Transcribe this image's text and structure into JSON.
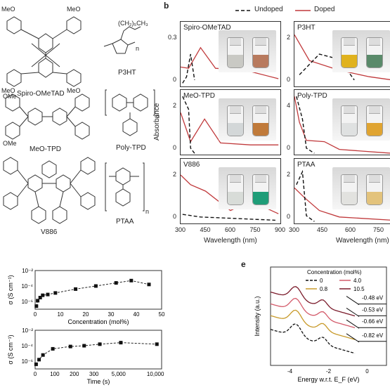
{
  "panel_b_label": "b",
  "panel_e_label": "e",
  "legend_b": {
    "undoped": "Undoped",
    "doped": "Doped"
  },
  "colors": {
    "undoped": "#111111",
    "doped": "#c0393b",
    "pin_green": "#36b06a"
  },
  "structures": [
    {
      "name": "Spiro-OMeTAD"
    },
    {
      "name": "P3HT"
    },
    {
      "name": "MeO-TPD"
    },
    {
      "name": "Poly-TPD"
    },
    {
      "name": "V886"
    },
    {
      "name": "PTAA"
    }
  ],
  "structure_substituents": {
    "meo": "MeO",
    "p3ht_chain": "(CH₂)₅CH₃",
    "n": "n",
    "ome": "OMe"
  },
  "absorbance": {
    "ylabel": "Absorbance",
    "xlabel": "Wavelength (nm)",
    "left_ticks": [
      "300",
      "450",
      "600",
      "750",
      "900"
    ],
    "right_ticks": [
      "300",
      "450",
      "600",
      "750"
    ],
    "panels": [
      {
        "name": "Spiro-OMeTAD",
        "ticks": [
          "0.3",
          "0"
        ]
      },
      {
        "name": "P3HT",
        "ticks": [
          "2",
          "0"
        ]
      },
      {
        "name": "MeO-TPD",
        "ticks": [
          "2",
          "0"
        ]
      },
      {
        "name": "Poly-TPD",
        "ticks": [
          "4",
          "0"
        ]
      },
      {
        "name": "V886",
        "ticks": [
          "2",
          "0"
        ]
      },
      {
        "name": "PTAA",
        "ticks": [
          "2",
          "0"
        ]
      }
    ],
    "vial_colors": {
      "Spiro-OMeTAD": [
        "#c9c9c4",
        "#b87a5e"
      ],
      "P3HT": [
        "#e0b21e",
        "#5a8a6a"
      ],
      "MeO-TPD": [
        "#d3d7d8",
        "#c07a3a"
      ],
      "Poly-TPD": [
        "#dfe1e1",
        "#e0a431"
      ],
      "V886": [
        "#d8dcd8",
        "#1f9d78"
      ],
      "PTAA": [
        "#e2e2df",
        "#e3c37c"
      ]
    }
  },
  "chart_data": [
    {
      "type": "scatter",
      "ylabel": "σ (S cm⁻¹)",
      "xlabel": "Concentration (mol%)",
      "xlim": [
        0,
        50
      ],
      "ylim_log10": [
        -7,
        -2
      ],
      "x_ticks": [
        "0",
        "10",
        "20",
        "30",
        "40",
        "50"
      ],
      "y_ticks": [
        "10⁻²",
        "10⁻⁴",
        "10⁻⁶"
      ],
      "x": [
        0.5,
        1,
        2,
        3,
        5,
        8,
        16,
        24,
        32,
        38,
        45
      ],
      "y_log10": [
        -6.6,
        -5.9,
        -5.5,
        -5.2,
        -5.1,
        -4.9,
        -4.4,
        -4.0,
        -3.6,
        -3.3,
        -3.8
      ]
    },
    {
      "type": "scatter",
      "ylabel": "σ (S cm⁻¹)",
      "xlabel": "Time (s)",
      "ylim_log10": [
        -7,
        -2
      ],
      "x_ticks": [
        "0",
        "100",
        "200",
        "300",
        "5,000",
        "10,000"
      ],
      "y_ticks": [
        "10⁻²",
        "10⁻⁴",
        "10⁻⁶"
      ],
      "x": [
        5,
        20,
        40,
        90,
        180,
        250,
        330,
        5300,
        10200
      ],
      "y_log10": [
        -6.4,
        -5.8,
        -5.2,
        -4.4,
        -4.1,
        -4.0,
        -3.8,
        -3.6,
        -3.8
      ]
    },
    {
      "type": "line",
      "ylabel": "Intensity (a.u.)",
      "xlabel": "Energy w.r.t. E_F (eV)",
      "x_ticks": [
        "-4",
        "-2",
        "0"
      ],
      "legend_title": "Concentration (mol%)",
      "series": [
        {
          "name": "0",
          "color": "#111111",
          "dashed": true,
          "onset_eV": "-0.82 eV"
        },
        {
          "name": "0.8",
          "color": "#c89a2a",
          "dashed": false,
          "onset_eV": "-0.66 eV"
        },
        {
          "name": "4.0",
          "color": "#d35a6a",
          "dashed": false,
          "onset_eV": "-0.53 eV"
        },
        {
          "name": "10.5",
          "color": "#7a1a2a",
          "dashed": false,
          "onset_eV": "-0.48 eV"
        }
      ]
    }
  ]
}
